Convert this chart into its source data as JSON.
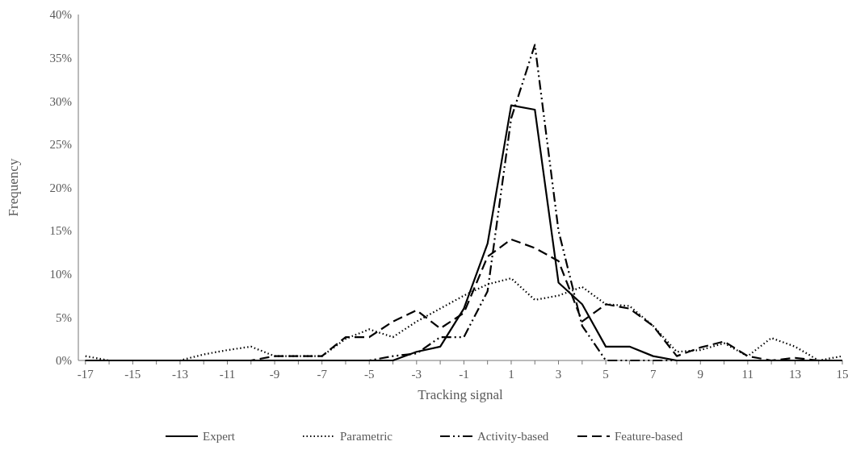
{
  "chart_data": {
    "type": "line",
    "xlabel": "Tracking signal",
    "ylabel": "Frequency",
    "x": [
      -17,
      -16,
      -15,
      -14,
      -13,
      -12,
      -11,
      -10,
      -9,
      -8,
      -7,
      -6,
      -5,
      -4,
      -3,
      -2,
      -1,
      0,
      1,
      2,
      3,
      4,
      5,
      6,
      7,
      8,
      9,
      10,
      11,
      12,
      13,
      14,
      15
    ],
    "xlim": [
      -17.3,
      15
    ],
    "xticks": [
      -17,
      -15,
      -13,
      -11,
      -9,
      -7,
      -5,
      -3,
      -1,
      1,
      3,
      5,
      7,
      9,
      11,
      13,
      15
    ],
    "ylim": [
      0,
      40
    ],
    "yticks": [
      {
        "value": 0,
        "label": "0%"
      },
      {
        "value": 5,
        "label": "5%"
      },
      {
        "value": 10,
        "label": "10%"
      },
      {
        "value": 15,
        "label": "15%"
      },
      {
        "value": 20,
        "label": "20%"
      },
      {
        "value": 25,
        "label": "25%"
      },
      {
        "value": 30,
        "label": "30%"
      },
      {
        "value": 35,
        "label": "35%"
      },
      {
        "value": 40,
        "label": "40%"
      }
    ],
    "grid": false,
    "legend": "bottom",
    "series": [
      {
        "name": "Expert",
        "color": "#000000",
        "line_style": "solid",
        "values": [
          0,
          0,
          0,
          0,
          0,
          0,
          0,
          0,
          0,
          0,
          0,
          0,
          0,
          0,
          1,
          1.6,
          6,
          13.5,
          29.5,
          29,
          9,
          6.5,
          1.6,
          1.6,
          0.5,
          0,
          0,
          0,
          0,
          0,
          0,
          0,
          0
        ]
      },
      {
        "name": "Parametric",
        "color": "#000000",
        "line_style": "dotted",
        "values": [
          0.5,
          0,
          0,
          0,
          0,
          0.7,
          1.2,
          1.6,
          0.5,
          0.5,
          0.5,
          2.5,
          3.6,
          2.7,
          4.5,
          6,
          7.5,
          8.8,
          9.5,
          7,
          7.5,
          8.5,
          6.5,
          6.3,
          4,
          1,
          1.2,
          2,
          0.5,
          2.6,
          1.6,
          0,
          0.5
        ]
      },
      {
        "name": "Activity-based",
        "color": "#000000",
        "line_style": "dashdot",
        "values": [
          0,
          0,
          0,
          0,
          0,
          0,
          0,
          0,
          0,
          0,
          0,
          0,
          0,
          0.5,
          0.8,
          2.7,
          2.7,
          8,
          28,
          36.5,
          15,
          4,
          0,
          0,
          0,
          0,
          0,
          0,
          0,
          0,
          0,
          0,
          0
        ]
      },
      {
        "name": "Feature-based",
        "color": "#000000",
        "line_style": "dashed",
        "values": [
          0,
          0,
          0,
          0,
          0,
          0,
          0,
          0,
          0.5,
          0.5,
          0.5,
          2.7,
          2.7,
          4.5,
          5.8,
          3.7,
          5.5,
          12,
          14,
          13,
          11.5,
          4.5,
          6.5,
          6,
          4,
          0.5,
          1.5,
          2.2,
          0.5,
          0,
          0.3,
          0,
          0
        ]
      }
    ]
  }
}
